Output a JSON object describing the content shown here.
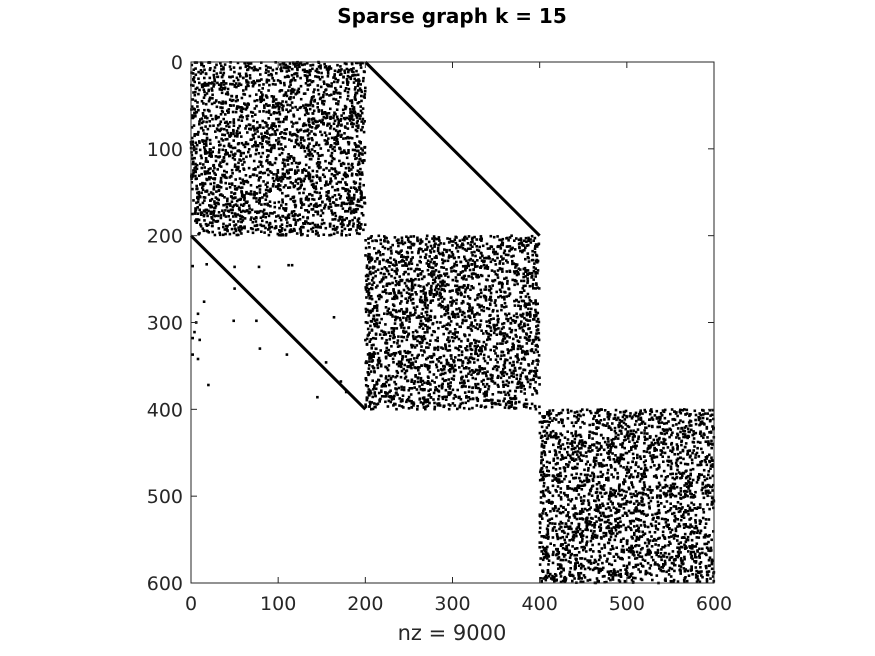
{
  "chart_data": {
    "type": "scatter",
    "subtype": "spy-sparsity-pattern",
    "title": "Sparse graph k = 15",
    "xlabel": "nz = 9000",
    "ylabel": "",
    "matrix_size": 600,
    "xlim": [
      0,
      600
    ],
    "ylim": [
      0,
      600
    ],
    "y_reversed": true,
    "grid": false,
    "x_ticks": [
      0,
      100,
      200,
      300,
      400,
      500,
      600
    ],
    "y_ticks": [
      0,
      100,
      200,
      300,
      400,
      500,
      600
    ],
    "tick_labels_x": [
      "0",
      "100",
      "200",
      "300",
      "400",
      "500",
      "600"
    ],
    "tick_labels_y": [
      "0",
      "100",
      "200",
      "300",
      "400",
      "500",
      "600"
    ],
    "nonzeros": 9000,
    "blocks": [
      {
        "name": "block-1",
        "rows": [
          0,
          200
        ],
        "cols": [
          0,
          200
        ]
      },
      {
        "name": "block-2",
        "rows": [
          200,
          400
        ],
        "cols": [
          200,
          400
        ]
      },
      {
        "name": "block-3",
        "rows": [
          400,
          600
        ],
        "cols": [
          400,
          600
        ]
      }
    ],
    "off_diagonal_lines": [
      {
        "name": "upper-diagonal",
        "from": [
          200,
          0
        ],
        "to": [
          400,
          200
        ]
      },
      {
        "name": "lower-diagonal",
        "from": [
          0,
          200
        ],
        "to": [
          200,
          400
        ]
      }
    ],
    "outlier_points": [
      {
        "x": 2,
        "y": 235
      },
      {
        "x": 18,
        "y": 233
      },
      {
        "x": 50,
        "y": 236
      },
      {
        "x": 78,
        "y": 236
      },
      {
        "x": 112,
        "y": 234
      },
      {
        "x": 116,
        "y": 234
      },
      {
        "x": 15,
        "y": 276
      },
      {
        "x": 50,
        "y": 261
      },
      {
        "x": 8,
        "y": 290
      },
      {
        "x": 6,
        "y": 300
      },
      {
        "x": 4,
        "y": 311
      },
      {
        "x": 2,
        "y": 318
      },
      {
        "x": 10,
        "y": 320
      },
      {
        "x": 2,
        "y": 337
      },
      {
        "x": 8,
        "y": 342
      },
      {
        "x": 20,
        "y": 372
      },
      {
        "x": 49,
        "y": 298
      },
      {
        "x": 75,
        "y": 298
      },
      {
        "x": 164,
        "y": 294
      },
      {
        "x": 79,
        "y": 330
      },
      {
        "x": 110,
        "y": 337
      },
      {
        "x": 155,
        "y": 346
      },
      {
        "x": 145,
        "y": 386
      },
      {
        "x": 178,
        "y": 380
      },
      {
        "x": 172,
        "y": 368
      }
    ],
    "colors": {
      "markers": "#000000",
      "axes": "#262626",
      "background": "#ffffff"
    }
  }
}
